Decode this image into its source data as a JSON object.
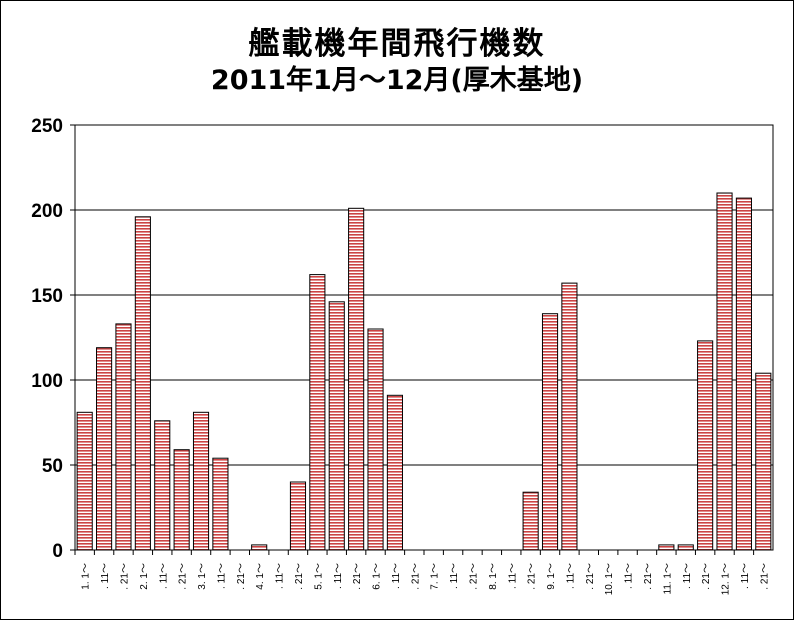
{
  "chart_data": {
    "type": "bar",
    "title": "艦載機年間飛行機数",
    "subtitle": "2011年1月～12月(厚木基地)",
    "xlabel": "",
    "ylabel": "",
    "ylim": [
      0,
      250
    ],
    "yticks": [
      0,
      50,
      100,
      150,
      200,
      250
    ],
    "grid": true,
    "legend": "none",
    "bar_color": "#cc4444",
    "bar_stripe_color": "#ffffff",
    "categories": [
      "1. 1～",
      ". 11～",
      ". 21～",
      "2. 1～",
      ". 11～",
      ". 21～",
      "3. 1～",
      ". 11～",
      ". 21～",
      "4. 1～",
      ". 11～",
      ". 21～",
      "5. 1～",
      ". 11～",
      ". 21～",
      "6. 1～",
      ". 11～",
      ". 21～",
      "7. 1～",
      ". 11～",
      ". 21～",
      "8. 1～",
      ". 11～",
      ". 21～",
      "9. 1～",
      ". 11～",
      ". 21～",
      "10. 1～",
      ". 11～",
      ". 21～",
      "11. 1～",
      ". 11～",
      ". 21～",
      "12. 1～",
      ". 11～",
      ". 21～"
    ],
    "values": [
      81,
      119,
      133,
      196,
      76,
      59,
      81,
      54,
      0,
      3,
      0,
      40,
      162,
      146,
      201,
      130,
      91,
      0,
      0,
      0,
      0,
      0,
      0,
      34,
      139,
      157,
      0,
      0,
      0,
      0,
      3,
      3,
      123,
      210,
      207,
      104
    ]
  }
}
